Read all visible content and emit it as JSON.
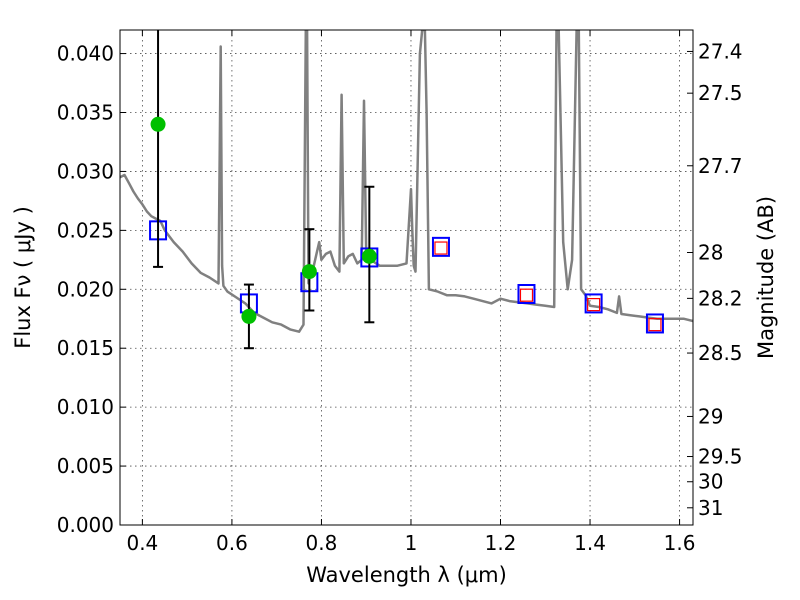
{
  "chart_data": {
    "type": "scatter",
    "xlabel": "Wavelength  λ (μm)",
    "ylabel": "Flux  Fν  ( μJy )",
    "ylabel_right": "Magnitude (AB)",
    "xlim": [
      0.35,
      1.63
    ],
    "ylim": [
      0.0,
      0.042
    ],
    "grid": true,
    "x_ticks": [
      0.4,
      0.6,
      0.8,
      1.0,
      1.2,
      1.4,
      1.6
    ],
    "x_tick_labels": [
      "0.4",
      "0.6",
      "0.8",
      "1",
      "1.2",
      "1.4",
      "1.6"
    ],
    "y_ticks": [
      0.0,
      0.005,
      0.01,
      0.015,
      0.02,
      0.025,
      0.03,
      0.035,
      0.04
    ],
    "y_tick_labels": [
      "0.000",
      "0.005",
      "0.010",
      "0.015",
      "0.020",
      "0.025",
      "0.030",
      "0.035",
      "0.040"
    ],
    "right_ticks": [
      {
        "label": "27.4",
        "flux": 0.04018
      },
      {
        "label": "27.5",
        "flux": 0.03664
      },
      {
        "label": "27.7",
        "flux": 0.03048
      },
      {
        "label": "28",
        "flux": 0.02312
      },
      {
        "label": "28.2",
        "flux": 0.01923
      },
      {
        "label": "28.5",
        "flux": 0.01459
      },
      {
        "label": "29",
        "flux": 0.00921
      },
      {
        "label": "29.5",
        "flux": 0.00581
      },
      {
        "label": "30",
        "flux": 0.00367
      },
      {
        "label": "31",
        "flux": 0.00146
      }
    ],
    "series": [
      {
        "style": "gray-line",
        "color": "#808080",
        "x": [
          0.35,
          0.36,
          0.37,
          0.38,
          0.39,
          0.4,
          0.41,
          0.42,
          0.43,
          0.44,
          0.45,
          0.47,
          0.49,
          0.51,
          0.53,
          0.55,
          0.57,
          0.575,
          0.578,
          0.581,
          0.59,
          0.61,
          0.63,
          0.65,
          0.67,
          0.69,
          0.71,
          0.73,
          0.75,
          0.76,
          0.765,
          0.768,
          0.771,
          0.775,
          0.78,
          0.79,
          0.795,
          0.8,
          0.81,
          0.82,
          0.83,
          0.84,
          0.845,
          0.85,
          0.86,
          0.87,
          0.88,
          0.89,
          0.895,
          0.9,
          0.91,
          0.93,
          0.95,
          0.97,
          0.99,
          1.0,
          1.003,
          1.006,
          1.01,
          1.02,
          1.025,
          1.028,
          1.031,
          1.035,
          1.04,
          1.06,
          1.08,
          1.1,
          1.12,
          1.14,
          1.16,
          1.18,
          1.2,
          1.22,
          1.24,
          1.26,
          1.28,
          1.3,
          1.32,
          1.325,
          1.33,
          1.34,
          1.35,
          1.36,
          1.37,
          1.375,
          1.38,
          1.39,
          1.4,
          1.42,
          1.44,
          1.46,
          1.465,
          1.47,
          1.49,
          1.51,
          1.53,
          1.55,
          1.57,
          1.59,
          1.61,
          1.63
        ],
        "y": [
          0.0295,
          0.0297,
          0.029,
          0.0283,
          0.0277,
          0.0272,
          0.0266,
          0.0262,
          0.026,
          0.0258,
          0.025,
          0.024,
          0.0232,
          0.0222,
          0.0214,
          0.021,
          0.0205,
          0.0406,
          0.022,
          0.0203,
          0.0198,
          0.0193,
          0.0188,
          0.018,
          0.0176,
          0.0172,
          0.017,
          0.0166,
          0.0164,
          0.017,
          0.042,
          0.042,
          0.0205,
          0.0215,
          0.0215,
          0.0232,
          0.024,
          0.0225,
          0.023,
          0.0232,
          0.022,
          0.0215,
          0.0365,
          0.0222,
          0.0228,
          0.023,
          0.0222,
          0.0225,
          0.036,
          0.023,
          0.0225,
          0.022,
          0.022,
          0.022,
          0.0222,
          0.0285,
          0.025,
          0.022,
          0.0215,
          0.04,
          0.042,
          0.042,
          0.042,
          0.035,
          0.02,
          0.0198,
          0.0195,
          0.0195,
          0.0194,
          0.0192,
          0.019,
          0.0188,
          0.0192,
          0.019,
          0.0189,
          0.0188,
          0.0187,
          0.0186,
          0.0185,
          0.042,
          0.042,
          0.024,
          0.02,
          0.0225,
          0.042,
          0.042,
          0.02,
          0.0195,
          0.0186,
          0.0185,
          0.0183,
          0.018,
          0.0194,
          0.0179,
          0.0178,
          0.0177,
          0.0176,
          0.0175,
          0.0175,
          0.0175,
          0.0175,
          0.0173
        ]
      },
      {
        "style": "blue-open-square",
        "color": "#0000ff",
        "x": [
          0.435,
          0.638,
          0.773,
          0.907,
          1.067,
          1.258,
          1.408,
          1.545
        ],
        "y": [
          0.025,
          0.0188,
          0.0206,
          0.0227,
          0.0236,
          0.0196,
          0.0188,
          0.0171
        ]
      },
      {
        "style": "red-open-square",
        "color": "#ff0000",
        "x": [
          1.067,
          1.258,
          1.408,
          1.545
        ],
        "y": [
          0.0235,
          0.0195,
          0.0187,
          0.017
        ]
      },
      {
        "style": "green-filled-circle",
        "color": "#00c000",
        "x": [
          0.435,
          0.638,
          0.773,
          0.907
        ],
        "y": [
          0.034,
          0.0177,
          0.0215,
          0.0228
        ],
        "y_low": [
          0.0219,
          0.015,
          0.0182,
          0.0172
        ],
        "y_high": [
          0.042,
          0.0204,
          0.0251,
          0.0287
        ]
      }
    ]
  }
}
